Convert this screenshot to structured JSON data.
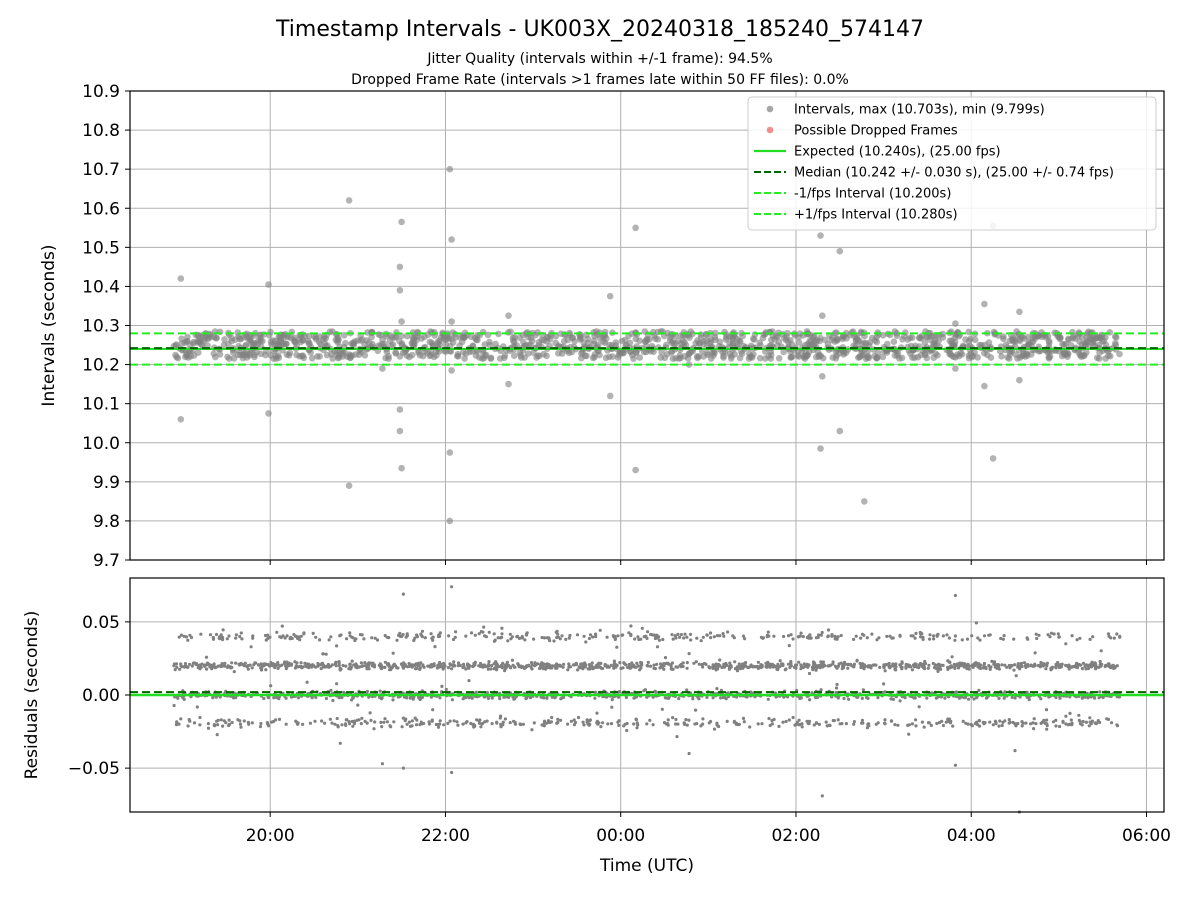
{
  "title": "Timestamp Intervals - UK003X_20240318_185240_574147",
  "subtitle_1": "Jitter Quality (intervals within +/-1 frame): 94.5%",
  "subtitle_2": "Dropped Frame Rate (intervals >1 frames late within 50 FF files): 0.0%",
  "colors": {
    "points": "#808080",
    "dropped": "#f06060",
    "expected": "#22dd22",
    "median": "#006400",
    "band": "#22ee22",
    "grid": "#b0b0b0"
  },
  "chart_data": [
    {
      "type": "scatter",
      "panel": "top",
      "xlabel": "",
      "ylabel": "Intervals (seconds)",
      "ylim": [
        9.7,
        10.9
      ],
      "y_ticks": [
        "9.7",
        "9.8",
        "9.9",
        "10.0",
        "10.1",
        "10.2",
        "10.3",
        "10.4",
        "10.5",
        "10.6",
        "10.7",
        "10.8",
        "10.9"
      ],
      "x_domain_hours": [
        18.4,
        30.2
      ],
      "x_ticks": [
        20,
        22,
        24,
        26,
        28,
        30
      ],
      "grid": true,
      "legend_position": "top-right",
      "legend": [
        {
          "label": "Intervals, max (10.703s), min (9.799s)",
          "kind": "dot",
          "color": "#808080"
        },
        {
          "label": "Possible Dropped Frames",
          "kind": "dot",
          "color": "#f06060"
        },
        {
          "label": "Expected (10.240s), (25.00 fps)",
          "kind": "line",
          "color": "#22dd22"
        },
        {
          "label": "Median (10.242 +/- 0.030 s), (25.00 +/- 0.74 fps)",
          "kind": "dash",
          "color": "#006400"
        },
        {
          "label": "-1/fps Interval (10.200s)",
          "kind": "dash",
          "color": "#22ee22"
        },
        {
          "label": "+1/fps Interval (10.280s)",
          "kind": "dash",
          "color": "#22ee22"
        }
      ],
      "lines": {
        "expected": 10.24,
        "median": 10.242,
        "minus": 10.2,
        "plus": 10.28
      },
      "dense_band": {
        "x_start": 18.9,
        "x_end": 29.7,
        "y_min": 10.215,
        "y_max": 10.285
      },
      "outliers": [
        [
          18.98,
          10.42
        ],
        [
          18.98,
          10.06
        ],
        [
          19.98,
          10.405
        ],
        [
          19.98,
          10.075
        ],
        [
          20.9,
          10.62
        ],
        [
          20.9,
          9.89
        ],
        [
          21.5,
          10.565
        ],
        [
          21.48,
          10.45
        ],
        [
          21.48,
          10.39
        ],
        [
          21.5,
          10.31
        ],
        [
          21.48,
          10.085
        ],
        [
          21.48,
          10.03
        ],
        [
          21.5,
          9.935
        ],
        [
          21.28,
          10.19
        ],
        [
          22.05,
          10.7
        ],
        [
          22.07,
          10.52
        ],
        [
          22.07,
          10.31
        ],
        [
          22.05,
          9.975
        ],
        [
          22.05,
          9.8
        ],
        [
          22.07,
          10.185
        ],
        [
          22.72,
          10.325
        ],
        [
          22.72,
          10.15
        ],
        [
          23.88,
          10.375
        ],
        [
          23.88,
          10.12
        ],
        [
          24.17,
          10.55
        ],
        [
          24.17,
          9.93
        ],
        [
          24.78,
          10.2
        ],
        [
          26.28,
          10.53
        ],
        [
          26.3,
          10.325
        ],
        [
          26.3,
          10.17
        ],
        [
          26.28,
          9.985
        ],
        [
          26.5,
          10.49
        ],
        [
          26.5,
          10.03
        ],
        [
          26.78,
          9.85
        ],
        [
          27.82,
          10.305
        ],
        [
          27.82,
          10.19
        ],
        [
          28.15,
          10.355
        ],
        [
          28.15,
          10.145
        ],
        [
          28.25,
          10.555
        ],
        [
          28.25,
          9.96
        ],
        [
          28.55,
          10.335
        ],
        [
          28.55,
          10.16
        ]
      ]
    },
    {
      "type": "scatter",
      "panel": "bottom",
      "xlabel": "Time (UTC)",
      "ylabel": "Residuals (seconds)",
      "ylim": [
        -0.08,
        0.08
      ],
      "y_ticks": [
        "−0.05",
        "0.00",
        "0.05"
      ],
      "y_tick_values": [
        -0.05,
        0.0,
        0.05
      ],
      "x_domain_hours": [
        18.4,
        30.2
      ],
      "x_ticks": [
        20,
        22,
        24,
        26,
        28,
        30
      ],
      "x_tick_labels": [
        "20:00",
        "22:00",
        "00:00",
        "02:00",
        "04:00",
        "06:00"
      ],
      "grid": true,
      "lines": {
        "expected": 0.0,
        "median": 0.002
      },
      "clusters": [
        -0.019,
        0.0,
        0.02,
        0.04
      ],
      "x_start": 18.9,
      "x_end": 29.7,
      "outliers": [
        [
          21.52,
          0.069
        ],
        [
          22.07,
          0.074
        ],
        [
          27.82,
          0.068
        ],
        [
          21.28,
          -0.047
        ],
        [
          21.52,
          -0.05
        ],
        [
          22.07,
          -0.053
        ],
        [
          26.3,
          -0.069
        ],
        [
          27.82,
          -0.048
        ],
        [
          28.55,
          -0.08
        ],
        [
          24.78,
          -0.04
        ],
        [
          20.8,
          -0.033
        ],
        [
          28.5,
          -0.038
        ]
      ]
    }
  ]
}
